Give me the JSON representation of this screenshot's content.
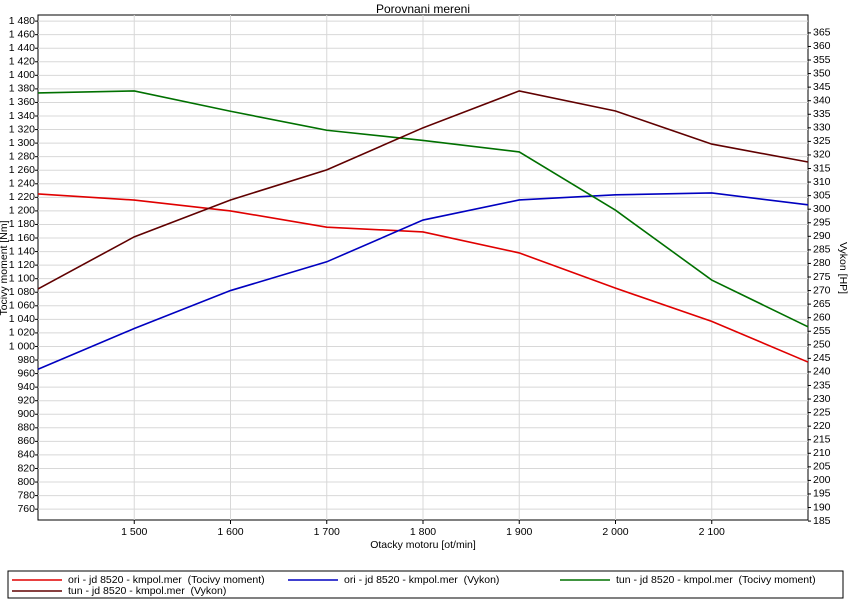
{
  "chart_data": {
    "type": "line",
    "title": "Porovnani mereni",
    "x_label": "Otacky motoru [ot/min]",
    "y_label": "Tocivy moment [Nm]",
    "y2_label": "Vykon [HP]",
    "x": [
      1400,
      1500,
      1600,
      1700,
      1800,
      1900,
      2000,
      2100,
      2200
    ],
    "xlim": [
      1400,
      2200
    ],
    "xticks": [
      {
        "value": 1500,
        "label": "1 500"
      },
      {
        "value": 1600,
        "label": "1 600"
      },
      {
        "value": 1700,
        "label": "1 700"
      },
      {
        "value": 1800,
        "label": "1 800"
      },
      {
        "value": 1900,
        "label": "1 900"
      },
      {
        "value": 2000,
        "label": "2 000"
      },
      {
        "value": 2100,
        "label": "2 100"
      }
    ],
    "ylim": [
      744,
      1489
    ],
    "yticks": [
      760,
      780,
      800,
      820,
      840,
      860,
      880,
      900,
      920,
      940,
      960,
      980,
      {
        "value": 1000,
        "label": "1 000"
      },
      {
        "value": 1020,
        "label": "1 020"
      },
      {
        "value": 1040,
        "label": "1 040"
      },
      {
        "value": 1060,
        "label": "1 060"
      },
      {
        "value": 1080,
        "label": "1 080"
      },
      {
        "value": 1100,
        "label": "1 100"
      },
      {
        "value": 1120,
        "label": "1 120"
      },
      {
        "value": 1140,
        "label": "1 140"
      },
      {
        "value": 1160,
        "label": "1 160"
      },
      {
        "value": 1180,
        "label": "1 180"
      },
      {
        "value": 1200,
        "label": "1 200"
      },
      {
        "value": 1220,
        "label": "1 220"
      },
      {
        "value": 1240,
        "label": "1 240"
      },
      {
        "value": 1260,
        "label": "1 260"
      },
      {
        "value": 1280,
        "label": "1 280"
      },
      {
        "value": 1300,
        "label": "1 300"
      },
      {
        "value": 1320,
        "label": "1 320"
      },
      {
        "value": 1340,
        "label": "1 340"
      },
      {
        "value": 1360,
        "label": "1 360"
      },
      {
        "value": 1380,
        "label": "1 380"
      },
      {
        "value": 1400,
        "label": "1 400"
      },
      {
        "value": 1420,
        "label": "1 420"
      },
      {
        "value": 1440,
        "label": "1 440"
      },
      {
        "value": 1460,
        "label": "1 460"
      },
      {
        "value": 1480,
        "label": "1 480"
      }
    ],
    "y2lim": [
      185.4,
      371.6
    ],
    "y2ticks": [
      185,
      190,
      195,
      200,
      205,
      210,
      215,
      220,
      225,
      230,
      235,
      240,
      245,
      250,
      255,
      260,
      265,
      270,
      275,
      280,
      285,
      290,
      295,
      300,
      305,
      310,
      315,
      320,
      325,
      330,
      335,
      340,
      345,
      350,
      355,
      360,
      365
    ],
    "grid": true,
    "legend": "bottom",
    "series": [
      {
        "name": "ori - jd 8520 - kmpol.mer  (Tocivy moment)",
        "color": "#e00000",
        "values": [
          1225,
          1216,
          1200,
          1176,
          1169,
          1138,
          1086,
          1037,
          977
        ]
      },
      {
        "name": "ori - jd 8520 - kmpol.mer  (Vykon)",
        "color": "#0000c0",
        "axis": "y2",
        "values": [
          241,
          256,
          270,
          280.6,
          296,
          303.4,
          305.3,
          306,
          301.6
        ]
      },
      {
        "name": "tun - jd 8520 - kmpol.mer  (Tocivy moment)",
        "color": "#007000",
        "values": [
          1374,
          1377,
          1347,
          1319,
          1304,
          1287,
          1201,
          1098,
          1029
        ]
      },
      {
        "name": "tun - jd 8520 - kmpol.mer  (Vykon)",
        "color": "#600000",
        "axis": "y2",
        "values": [
          270.6,
          289.8,
          303.4,
          314.5,
          330,
          343.6,
          336.2,
          324,
          317.4
        ]
      }
    ]
  }
}
